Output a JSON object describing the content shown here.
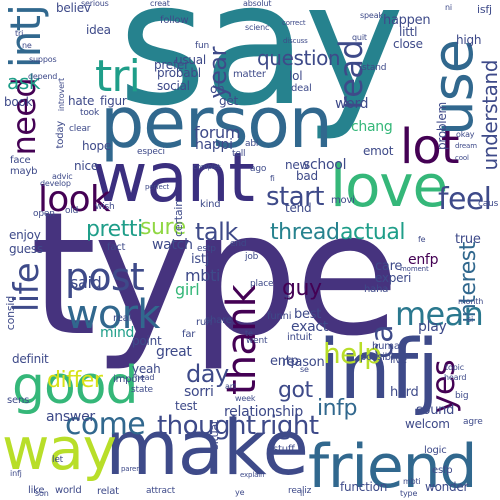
{
  "colors": {
    "background": "#ffffff",
    "dark_purple": "#440154",
    "indigo": "#3b2f7f",
    "blue": "#31688e",
    "teal": "#26828e",
    "green_teal": "#1f9e89",
    "green": "#35b779",
    "lime": "#90d743",
    "yellow": "#d8e219"
  },
  "words": {
    "say": "say",
    "type": "type",
    "person": "person",
    "want": "want",
    "make": "make",
    "love": "love",
    "friend": "friend",
    "infj": "infj",
    "way": "way",
    "good": "good",
    "lot": "lot",
    "use": "use",
    "look": "look",
    "post": "post",
    "work": "work",
    "thank": "thank",
    "intj": "intj",
    "tri": "tri",
    "need": "need",
    "read": "read",
    "life": "life",
    "come": "come",
    "thought": "thought",
    "right": "right",
    "mean": "mean",
    "interest": "interest",
    "ca": "ca",
    "yes": "yes",
    "talk": "talk",
    "thread": "thread",
    "actual": "actual",
    "sure": "sure",
    "pretti": "pretti",
    "start": "start",
    "said": "said",
    "guy": "guy",
    "differ": "differ",
    "help": "help",
    "day": "day",
    "got": "got",
    "infp": "infp",
    "ask": "ask",
    "year": "year",
    "feel": "feel",
    "understand": "understand",
    "person_small": "people",
    "question": "question",
    "forum": "forum",
    "enfp": "enfp",
    "mbti": "mbti",
    "istj": "istj",
    "girl": "girl",
    "watch": "watch",
    "point": "point",
    "great": "great",
    "sorri": "sorri",
    "test": "test",
    "relationship": "relationship",
    "answer": "answer",
    "music": "music",
    "definit": "definit",
    "mind": "mind",
    "yeah": "yeah",
    "reason": "reason",
    "best": "best",
    "exact": "exact",
    "play": "play",
    "hard": "hard",
    "sound": "sound",
    "function": "function",
    "wonder": "wonder",
    "world": "world",
    "like": "like",
    "welcom": "welcom",
    "possibl": "possibl",
    "entp": "entp",
    "school": "school",
    "tend": "tend",
    "place": "place",
    "new": "new",
    "bad": "bad",
    "care": "care",
    "true": "true",
    "experi": "experi",
    "live": "live",
    "enjoy": "enjoy",
    "guess": "guess",
    "hope": "hope",
    "nice": "nice",
    "hate": "hate",
    "happi": "happi",
    "chang": "chang",
    "word": "word",
    "lol": "lol",
    "get": "get",
    "oh": "oh",
    "idea": "idea",
    "believ": "believ",
    "happen": "happen",
    "close": "close",
    "littl": "littl",
    "high": "high",
    "book": "book",
    "social": "social",
    "probabl": "probabl",
    "usual": "usual",
    "prefer": "prefer",
    "follow": "follow",
    "matter": "matter",
    "isfj": "isfj",
    "face": "face",
    "mayb": "mayb",
    "especi": "especi",
    "certain": "certain",
    "emot": "emot",
    "movi": "movi",
    "problem": "problem",
    "consid": "consid",
    "fact": "fact",
    "funni": "funni",
    "human": "human",
    "haha": "haha",
    "estp": "estp",
    "esfp": "esfp",
    "realiz": "realiz",
    "relat": "relat",
    "attract": "attract",
    "stuff": "stuff",
    "logic": "logic",
    "import": "import",
    "state": "state",
    "situat": "situat",
    "intuit": "intuit",
    "sens": "sens",
    "real": "real",
    "share": "share",
    "far": "far",
    "run": "run",
    "went": "went",
    "kind": "kind",
    "ago": "ago",
    "end": "end",
    "wish": "wish",
    "old": "old",
    "open": "open",
    "job": "job",
    "tell": "tell",
    "lot2": "abl",
    "deal": "deal",
    "stand": "stand",
    "figur": "figur",
    "clear": "clear",
    "took": "took",
    "today": "today",
    "serious": "serious",
    "absolut": "absolut",
    "creat": "creat",
    "speak": "speak",
    "scienc": "scienc",
    "depend": "depend",
    "suppos": "suppos",
    "introvert": "introvert",
    "advic": "advic",
    "develop": "develop",
    "topic": "topic",
    "heard": "heard",
    "fun": "fun",
    "month": "month",
    "quit": "quit",
    "correct": "correct",
    "discuss": "discuss",
    "perfect": "perfect",
    "moment": "moment",
    "parent": "parent",
    "explain": "explain",
    "cool": "cool",
    "okay": "okay",
    "dream": "dream",
    "complet": "complet",
    "type2": "type",
    "ne": "ne",
    "ni": "ni",
    "fi": "fi",
    "ti": "ti",
    "fe": "fe",
    "te": "te",
    "si": "si",
    "se": "se",
    "big": "big",
    "art": "art",
    "week": "week",
    "head": "head",
    "let": "let",
    "caus": "caus",
    "agre": "agre",
    "tl": "tl",
    "son": "son",
    "ye": "ye",
    "ll": "ll",
    "tri2": "tri",
    "mbti2": "mbti",
    "infj2": "infj"
  }
}
